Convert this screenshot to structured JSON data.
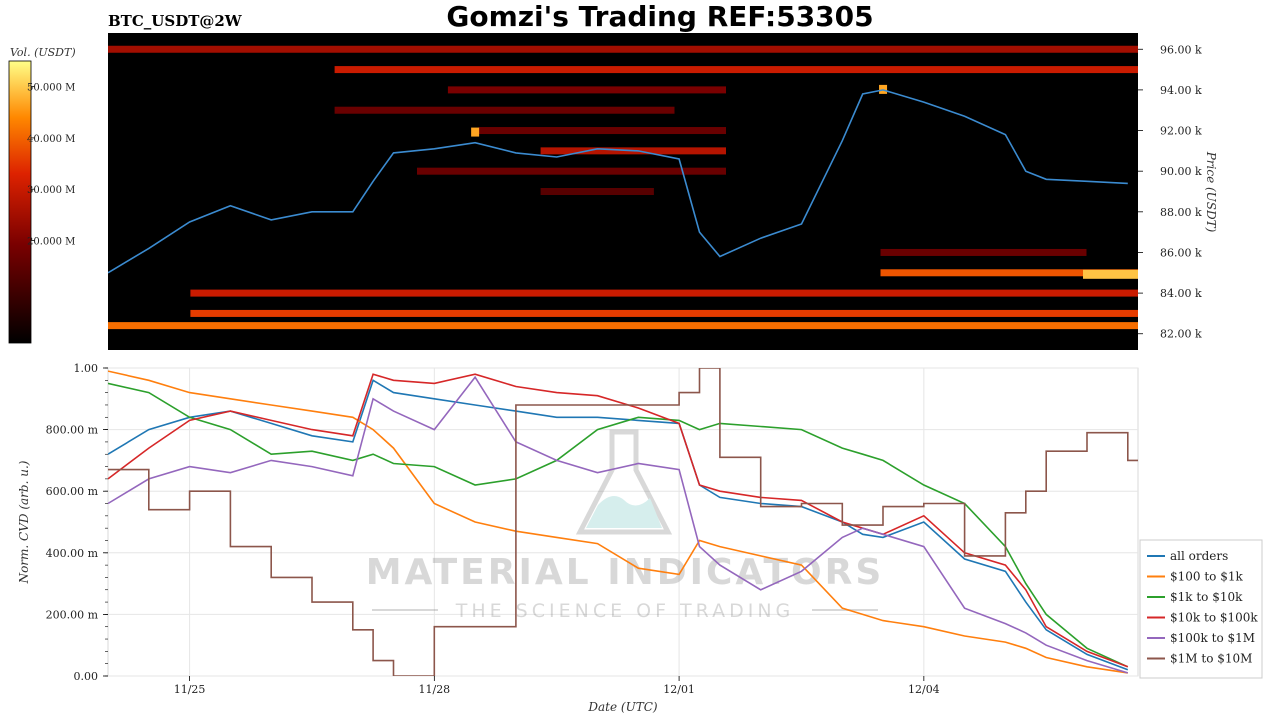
{
  "header": {
    "symbol": "BTC_USDT@2W",
    "title": "Gomzi's Trading REF:53305"
  },
  "colorbar": {
    "label": "Vol. (USDT)",
    "ticks": [
      "50.000 M",
      "40.000 M",
      "30.000 M",
      "20.000 M"
    ],
    "tick_values": [
      50,
      40,
      30,
      20
    ],
    "range": [
      0,
      55
    ]
  },
  "watermark": {
    "brand": "MATERIAL INDICATORS",
    "tagline": "THE SCIENCE OF TRADING"
  },
  "colors": {
    "heat_low": "#000000",
    "heat_mid": "#cc1100",
    "heat_high": "#ffee33",
    "price_line": "#3b8bd0",
    "grid": "#e6e6e6"
  },
  "chart_data": [
    {
      "type": "heatmap",
      "title": "BTC_USDT@2W",
      "ylabel": "Price (USDT)",
      "ylim": [
        81.2,
        96.8
      ],
      "y_unit": "k",
      "yticks": [
        82,
        84,
        86,
        88,
        90,
        92,
        94,
        96
      ],
      "ytick_labels": [
        "82.00 k",
        "84.00 k",
        "86.00 k",
        "88.00 k",
        "90.00 k",
        "92.00 k",
        "94.00 k",
        "96.00 k"
      ],
      "xlim": [
        "2024-11-24",
        "2024-12-06T15:00"
      ],
      "heat_bands": [
        {
          "price": 96.0,
          "from": 0.0,
          "to": 1.0,
          "intensity": 0.45
        },
        {
          "price": 95.0,
          "from": 0.22,
          "to": 1.0,
          "intensity": 0.55
        },
        {
          "price": 94.0,
          "from": 0.33,
          "to": 0.6,
          "intensity": 0.35
        },
        {
          "price": 93.0,
          "from": 0.22,
          "to": 0.55,
          "intensity": 0.3
        },
        {
          "price": 92.0,
          "from": 0.36,
          "to": 0.6,
          "intensity": 0.3
        },
        {
          "price": 91.0,
          "from": 0.42,
          "to": 0.6,
          "intensity": 0.5
        },
        {
          "price": 90.0,
          "from": 0.3,
          "to": 0.6,
          "intensity": 0.3
        },
        {
          "price": 89.0,
          "from": 0.42,
          "to": 0.53,
          "intensity": 0.25
        },
        {
          "price": 86.0,
          "from": 0.75,
          "to": 0.95,
          "intensity": 0.3
        },
        {
          "price": 85.0,
          "from": 0.75,
          "to": 1.0,
          "intensity": 0.7
        },
        {
          "price": 84.0,
          "from": 0.08,
          "to": 1.0,
          "intensity": 0.55
        },
        {
          "price": 83.0,
          "from": 0.08,
          "to": 1.0,
          "intensity": 0.65
        },
        {
          "price": 82.4,
          "from": 0.0,
          "to": 1.0,
          "intensity": 0.75
        }
      ],
      "hot_spots": [
        {
          "x": "2024-11-28T12:00",
          "price": 91.9,
          "intensity": 0.85
        },
        {
          "x": "2024-12-03T12:00",
          "price": 94.0,
          "intensity": 0.85
        },
        {
          "x": "2024-12-06T00:00",
          "price": 84.9,
          "intensity": 0.9
        }
      ],
      "series": [
        {
          "name": "BTC",
          "color": "#3b8bd0",
          "x": [
            "2024-11-24T00:00",
            "2024-11-24T12:00",
            "2024-11-25T00:00",
            "2024-11-25T12:00",
            "2024-11-26T00:00",
            "2024-11-26T12:00",
            "2024-11-27T00:00",
            "2024-11-27T06:00",
            "2024-11-27T12:00",
            "2024-11-28T00:00",
            "2024-11-28T12:00",
            "2024-11-29T00:00",
            "2024-11-29T12:00",
            "2024-11-30T00:00",
            "2024-11-30T12:00",
            "2024-12-01T00:00",
            "2024-12-01T06:00",
            "2024-12-01T12:00",
            "2024-12-02T00:00",
            "2024-12-02T12:00",
            "2024-12-03T00:00",
            "2024-12-03T06:00",
            "2024-12-03T12:00",
            "2024-12-04T00:00",
            "2024-12-04T12:00",
            "2024-12-05T00:00",
            "2024-12-05T06:00",
            "2024-12-05T12:00",
            "2024-12-06T00:00",
            "2024-12-06T12:00"
          ],
          "y": [
            85.0,
            86.2,
            87.5,
            88.3,
            87.6,
            88.0,
            88.0,
            89.5,
            90.9,
            91.1,
            91.4,
            90.9,
            90.7,
            91.1,
            91.0,
            90.6,
            87.0,
            85.8,
            86.7,
            87.4,
            91.5,
            93.8,
            94.0,
            93.4,
            92.7,
            91.8,
            90.0,
            89.6,
            89.5,
            89.4
          ]
        }
      ]
    },
    {
      "type": "line",
      "xlabel": "Date (UTC)",
      "ylabel": "Norm. CVD (arb. u.)",
      "ylim": [
        0,
        1
      ],
      "yticks": [
        0,
        0.2,
        0.4,
        0.6,
        0.8,
        1.0
      ],
      "ytick_labels": [
        "0.00",
        "200.00 m",
        "400.00 m",
        "600.00 m",
        "800.00 m",
        "1.00"
      ],
      "xlim": [
        "2024-11-24",
        "2024-12-06T15:00"
      ],
      "xticks": [
        "2024-11-25",
        "2024-11-28",
        "2024-12-01",
        "2024-12-04"
      ],
      "xtick_labels": [
        "11/25",
        "11/28",
        "12/01",
        "12/04"
      ],
      "grid": true,
      "legend_position": "bottom-right",
      "x": [
        "2024-11-24T00:00",
        "2024-11-24T12:00",
        "2024-11-25T00:00",
        "2024-11-25T12:00",
        "2024-11-26T00:00",
        "2024-11-26T12:00",
        "2024-11-27T00:00",
        "2024-11-27T06:00",
        "2024-11-27T12:00",
        "2024-11-28T00:00",
        "2024-11-28T12:00",
        "2024-11-29T00:00",
        "2024-11-29T12:00",
        "2024-11-30T00:00",
        "2024-11-30T12:00",
        "2024-12-01T00:00",
        "2024-12-01T06:00",
        "2024-12-01T12:00",
        "2024-12-02T00:00",
        "2024-12-02T12:00",
        "2024-12-03T00:00",
        "2024-12-03T06:00",
        "2024-12-03T12:00",
        "2024-12-04T00:00",
        "2024-12-04T12:00",
        "2024-12-05T00:00",
        "2024-12-05T06:00",
        "2024-12-05T12:00",
        "2024-12-06T00:00",
        "2024-12-06T12:00"
      ],
      "series": [
        {
          "name": "all orders",
          "color": "#1f77b4",
          "values": [
            0.72,
            0.8,
            0.84,
            0.86,
            0.82,
            0.78,
            0.76,
            0.96,
            0.92,
            0.9,
            0.88,
            0.86,
            0.84,
            0.84,
            0.83,
            0.82,
            0.62,
            0.58,
            0.56,
            0.55,
            0.5,
            0.46,
            0.45,
            0.5,
            0.38,
            0.34,
            0.24,
            0.15,
            0.07,
            0.02
          ]
        },
        {
          "name": "$100 to $1k",
          "color": "#ff7f0e",
          "values": [
            0.99,
            0.96,
            0.92,
            0.9,
            0.88,
            0.86,
            0.84,
            0.8,
            0.74,
            0.56,
            0.5,
            0.47,
            0.45,
            0.43,
            0.35,
            0.33,
            0.44,
            0.42,
            0.39,
            0.36,
            0.22,
            0.2,
            0.18,
            0.16,
            0.13,
            0.11,
            0.09,
            0.06,
            0.03,
            0.01
          ]
        },
        {
          "name": "$1k to $10k",
          "color": "#2ca02c",
          "values": [
            0.95,
            0.92,
            0.84,
            0.8,
            0.72,
            0.73,
            0.7,
            0.72,
            0.69,
            0.68,
            0.62,
            0.64,
            0.7,
            0.8,
            0.84,
            0.83,
            0.8,
            0.82,
            0.81,
            0.8,
            0.74,
            0.72,
            0.7,
            0.62,
            0.56,
            0.42,
            0.3,
            0.2,
            0.09,
            0.03
          ]
        },
        {
          "name": "$10k to $100k",
          "color": "#d62728",
          "values": [
            0.64,
            0.74,
            0.83,
            0.86,
            0.83,
            0.8,
            0.78,
            0.98,
            0.96,
            0.95,
            0.98,
            0.94,
            0.92,
            0.91,
            0.87,
            0.82,
            0.62,
            0.6,
            0.58,
            0.57,
            0.5,
            0.48,
            0.46,
            0.52,
            0.4,
            0.36,
            0.28,
            0.16,
            0.08,
            0.03
          ]
        },
        {
          "name": "$100k to $1M",
          "color": "#9467bd",
          "values": [
            0.56,
            0.64,
            0.68,
            0.66,
            0.7,
            0.68,
            0.65,
            0.9,
            0.86,
            0.8,
            0.97,
            0.76,
            0.7,
            0.66,
            0.69,
            0.67,
            0.42,
            0.36,
            0.28,
            0.34,
            0.45,
            0.48,
            0.46,
            0.42,
            0.22,
            0.17,
            0.14,
            0.1,
            0.05,
            0.01
          ]
        },
        {
          "name": "$1M to $10M",
          "color": "#8c564b",
          "values": [
            0.67,
            0.54,
            0.6,
            0.42,
            0.32,
            0.24,
            0.15,
            0.05,
            0.0,
            0.16,
            0.16,
            0.88,
            0.88,
            0.88,
            0.88,
            0.92,
            1.0,
            0.71,
            0.55,
            0.56,
            0.49,
            0.49,
            0.55,
            0.56,
            0.39,
            0.53,
            0.6,
            0.73,
            0.79,
            0.7
          ]
        }
      ]
    }
  ]
}
